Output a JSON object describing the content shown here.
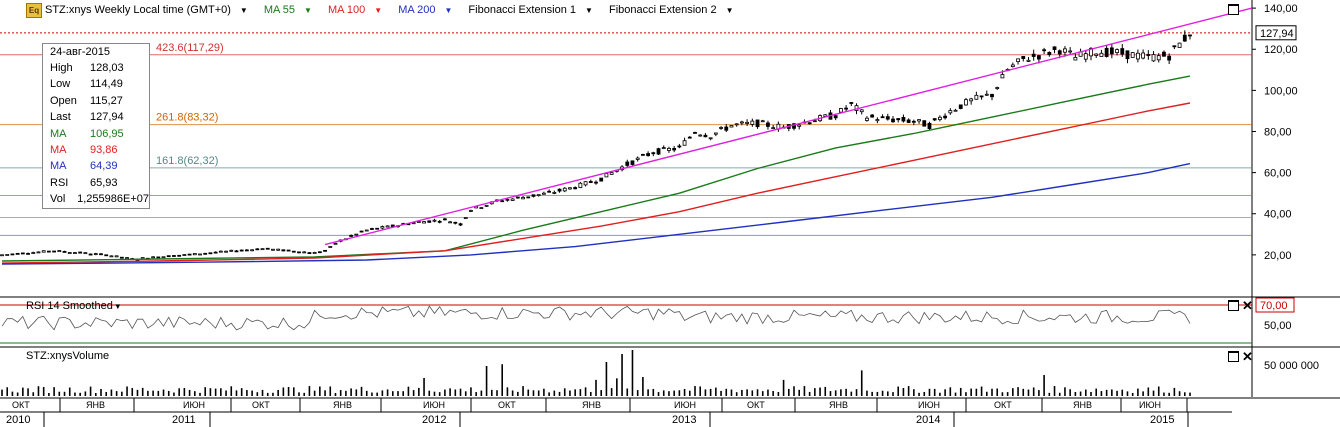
{
  "header": {
    "symbol": "STZ:xnys Weekly Local time (GMT+0)",
    "ma55": "MA 55",
    "ma100": "MA 100",
    "ma200": "MA 200",
    "fib1": "Fibonacci Extension 1",
    "fib2": "Fibonacci Extension 2",
    "logo": "Eq"
  },
  "colors": {
    "ma55": "#1a7a1a",
    "ma100": "#e02020",
    "ma200": "#2030c0",
    "trend": "#e020e0",
    "price": "#000000",
    "fib423": "#cc3333",
    "fib261": "#cc6600",
    "fib161": "#558888",
    "resist": "#cc0000"
  },
  "info": {
    "date": "24-авг-2015",
    "rows": [
      {
        "k": "High",
        "v": "128,03",
        "color": "#000000"
      },
      {
        "k": "Low",
        "v": "114,49",
        "color": "#000000"
      },
      {
        "k": "Open",
        "v": "115,27",
        "color": "#000000"
      },
      {
        "k": "Last",
        "v": "127,94",
        "color": "#000000"
      },
      {
        "k": "MA",
        "v": "106,95",
        "color": "#1a7a1a"
      },
      {
        "k": "MA",
        "v": "93,86",
        "color": "#e02020"
      },
      {
        "k": "MA",
        "v": "64,39",
        "color": "#2030c0"
      },
      {
        "k": "RSI",
        "v": "65,93",
        "color": "#000000"
      },
      {
        "k": "Vol",
        "v": "1,255986E+07",
        "color": "#000000"
      }
    ]
  },
  "rsi_panel": {
    "title": "RSI 14 Smoothed",
    "level_label": "70,00",
    "ytick": "50,00"
  },
  "volume_panel": {
    "title": "STZ:xnysVolume",
    "ytick": "50 000 000"
  },
  "chart_data": {
    "type": "line",
    "title": "STZ:xnys Weekly Local time (GMT+0)",
    "y_ticks": [
      "20,00",
      "40,00",
      "60,00",
      "80,00",
      "100,00",
      "120,00",
      "140,00"
    ],
    "ylim": [
      0,
      142
    ],
    "last_price_label": "127,94",
    "fib_levels": [
      {
        "label": "423.6(117,29)",
        "value": 117.29
      },
      {
        "label": "261.8(83,32)",
        "value": 83.32
      },
      {
        "label": "161.8(62,32)",
        "value": 62.32
      }
    ],
    "horizontal_levels": [
      127.94,
      117.29,
      83.32,
      62.32,
      48.9,
      38.2,
      29.5
    ],
    "months": [
      "ОКТ",
      "ЯНВ",
      "ИЮН",
      "ОКТ",
      "ЯНВ",
      "ИЮН",
      "ОКТ",
      "ЯНВ",
      "ИЮН",
      "ОКТ",
      "ЯНВ",
      "ИЮН",
      "ОКТ",
      "ЯНВ",
      "ИЮН"
    ],
    "years": [
      "2010",
      "2011",
      "2012",
      "2013",
      "2014",
      "2015"
    ],
    "x_range": [
      "2010-10",
      "2015-09"
    ],
    "series": [
      {
        "name": "Close",
        "points": [
          [
            0,
            20
          ],
          [
            5,
            21
          ],
          [
            10,
            22
          ],
          [
            15,
            21
          ],
          [
            20,
            20
          ],
          [
            25,
            18
          ],
          [
            30,
            19
          ],
          [
            35,
            20
          ],
          [
            40,
            21
          ],
          [
            45,
            22
          ],
          [
            50,
            23
          ],
          [
            55,
            22
          ],
          [
            60,
            21
          ],
          [
            62,
            22
          ],
          [
            65,
            27
          ],
          [
            70,
            32
          ],
          [
            75,
            34
          ],
          [
            80,
            36
          ],
          [
            85,
            37
          ],
          [
            88,
            35
          ],
          [
            90,
            42
          ],
          [
            95,
            46
          ],
          [
            100,
            48
          ],
          [
            105,
            50
          ],
          [
            110,
            53
          ],
          [
            115,
            57
          ],
          [
            120,
            64
          ],
          [
            125,
            70
          ],
          [
            130,
            72
          ],
          [
            133,
            80
          ],
          [
            136,
            78
          ],
          [
            140,
            83
          ],
          [
            145,
            84
          ],
          [
            150,
            82
          ],
          [
            155,
            85
          ],
          [
            160,
            88
          ],
          [
            163,
            93
          ],
          [
            166,
            87
          ],
          [
            170,
            86
          ],
          [
            175,
            85
          ],
          [
            178,
            83
          ],
          [
            182,
            90
          ],
          [
            186,
            95
          ],
          [
            190,
            98
          ],
          [
            193,
            110
          ],
          [
            196,
            115
          ],
          [
            200,
            118
          ],
          [
            203,
            120
          ],
          [
            206,
            116
          ],
          [
            210,
            119
          ],
          [
            215,
            118
          ],
          [
            220,
            116
          ],
          [
            224,
            117
          ],
          [
            228,
            128
          ]
        ]
      },
      {
        "name": "MA 55",
        "points": [
          [
            0,
            17
          ],
          [
            30,
            18
          ],
          [
            60,
            19
          ],
          [
            85,
            22
          ],
          [
            100,
            32
          ],
          [
            115,
            41
          ],
          [
            130,
            50
          ],
          [
            145,
            62
          ],
          [
            160,
            72
          ],
          [
            175,
            79
          ],
          [
            190,
            87
          ],
          [
            205,
            95
          ],
          [
            220,
            103
          ],
          [
            228,
            106.95
          ]
        ]
      },
      {
        "name": "MA 100",
        "points": [
          [
            0,
            16
          ],
          [
            30,
            17
          ],
          [
            60,
            18.5
          ],
          [
            85,
            22
          ],
          [
            100,
            28
          ],
          [
            115,
            34
          ],
          [
            130,
            41
          ],
          [
            145,
            50
          ],
          [
            160,
            58
          ],
          [
            175,
            66
          ],
          [
            190,
            74
          ],
          [
            205,
            82
          ],
          [
            220,
            90
          ],
          [
            228,
            93.86
          ]
        ]
      },
      {
        "name": "MA 200",
        "points": [
          [
            0,
            15.5
          ],
          [
            40,
            16.5
          ],
          [
            70,
            17.5
          ],
          [
            90,
            20
          ],
          [
            110,
            24
          ],
          [
            130,
            30
          ],
          [
            150,
            36
          ],
          [
            170,
            42
          ],
          [
            190,
            48
          ],
          [
            205,
            54
          ],
          [
            220,
            60
          ],
          [
            228,
            64.39
          ]
        ]
      }
    ],
    "trend_line": {
      "from": [
        62,
        25
      ],
      "to": [
        240,
        140
      ]
    }
  }
}
